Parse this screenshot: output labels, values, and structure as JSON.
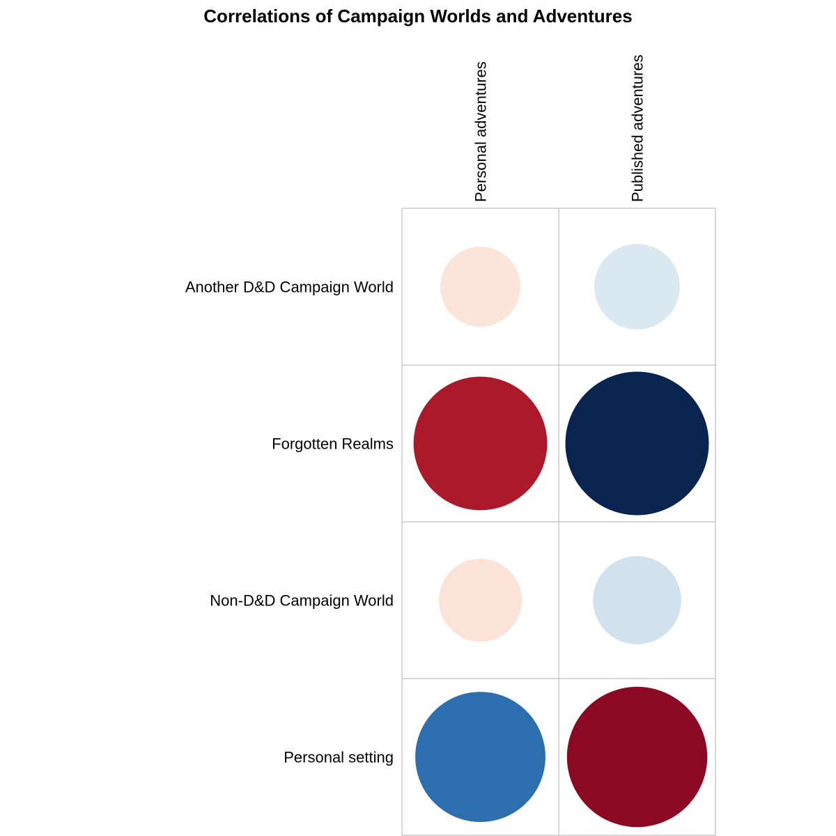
{
  "chart_data": {
    "type": "heatmap",
    "title": "Correlations of Campaign Worlds and Adventures",
    "columns": [
      "Personal adventures",
      "Published adventures"
    ],
    "rows": [
      "Another D&D Campaign World",
      "Forgotten Realms",
      "Non-D&D Campaign World",
      "Personal setting"
    ],
    "values": [
      [
        -0.14,
        0.16
      ],
      [
        -0.39,
        0.45
      ],
      [
        -0.15,
        0.17
      ],
      [
        0.37,
        -0.43
      ]
    ],
    "value_range": [
      -0.45,
      0.45
    ],
    "encoding": "circle area and color scale with correlation value",
    "colors": {
      "strong_negative": "#7a0020",
      "moderate_negative": "#ab1929",
      "weak_negative": "#fbe4d8",
      "neutral": "#f7f7f7",
      "weak_positive": "#dbe9f2",
      "moderate_positive": "#2d70af",
      "strong_positive": "#09244f",
      "grid": "#bdbdbd"
    },
    "grid": true,
    "legend": "none"
  }
}
